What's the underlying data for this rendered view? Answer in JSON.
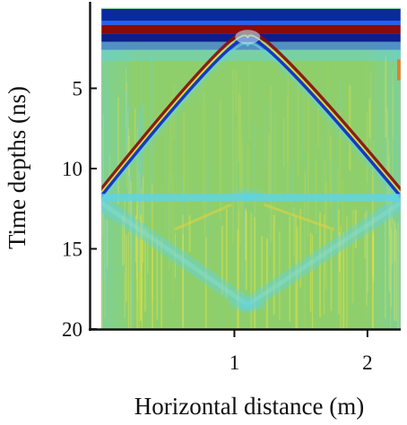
{
  "chart_data": {
    "type": "heatmap",
    "title": "",
    "xlabel": "Horizontal distance (m)",
    "ylabel": "Time depths (ns)",
    "xlim": [
      0,
      2.25
    ],
    "ylim": [
      20,
      0
    ],
    "x_ticks": [
      1,
      2
    ],
    "y_ticks": [
      5,
      10,
      15,
      20
    ],
    "grid": false,
    "legend": "none",
    "colormap": [
      "#00008f",
      "#0050ff",
      "#5fd3e6",
      "#8fcf6b",
      "#e8e03a",
      "#ff6a00",
      "#8b0000"
    ],
    "features": [
      {
        "label": "direct wave band",
        "time_ns": [
          0.8,
          2.0
        ],
        "value": "strong"
      },
      {
        "label": "hyperbola apex",
        "x_m": 1.1,
        "time_ns": 2.0
      },
      {
        "label": "horizontal reflector",
        "time_ns": 11.8
      },
      {
        "label": "lower diffraction apex",
        "x_m": 1.1,
        "time_ns": 18.5
      }
    ]
  }
}
